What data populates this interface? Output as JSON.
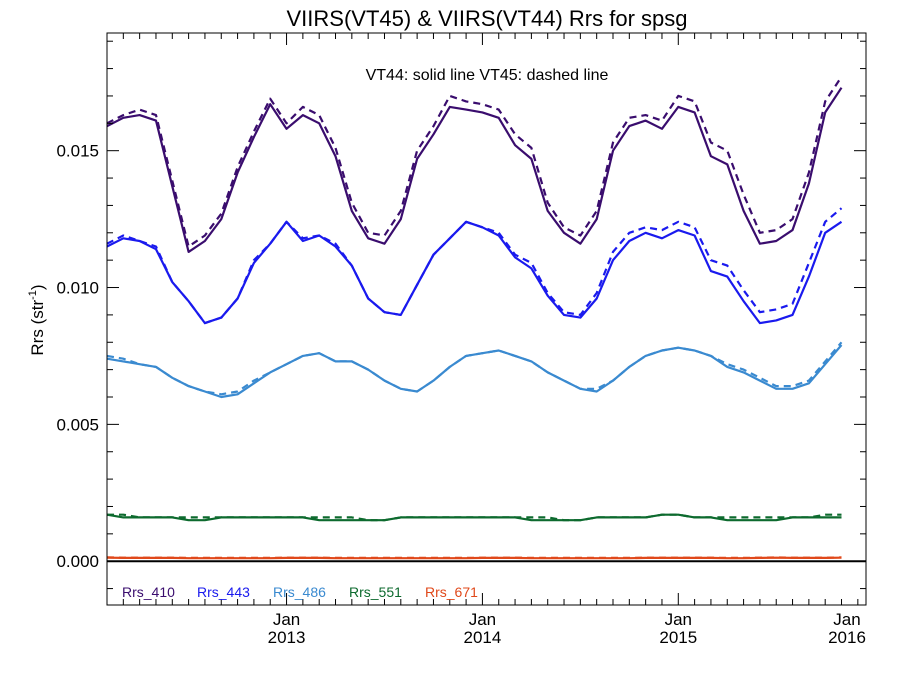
{
  "chart_data": {
    "type": "line",
    "title": "VIIRS(VT45) & VIIRS(VT44)  Rrs for spsg",
    "ylabel_main": "Rrs (str",
    "ylabel_sup": "-1",
    "ylabel_close": ")",
    "annotation": "VT44: solid line   VT45: dashed line",
    "ylim": [
      -0.0016,
      0.0193
    ],
    "xlim": [
      0,
      45
    ],
    "y_ticks": [
      {
        "value": 0.0,
        "label": "0.000"
      },
      {
        "value": 0.005,
        "label": "0.005"
      },
      {
        "value": 0.01,
        "label": "0.010"
      },
      {
        "value": 0.015,
        "label": "0.015"
      }
    ],
    "x_ticks": [
      {
        "x": 11,
        "month": "Jan",
        "year": "2013"
      },
      {
        "x": 23,
        "month": "Jan",
        "year": "2014"
      },
      {
        "x": 35,
        "month": "Jan",
        "year": "2015"
      },
      {
        "x": 47,
        "month": "Jan",
        "year": "2016"
      }
    ],
    "x_note": "x = months since the first data point; sample 0 is the first month on the plot",
    "x": [
      0,
      1,
      2,
      3,
      4,
      5,
      6,
      7,
      8,
      9,
      10,
      11,
      12,
      13,
      14,
      15,
      16,
      17,
      18,
      19,
      20,
      21,
      22,
      23,
      24,
      25,
      26,
      27,
      28,
      29,
      30,
      31,
      32,
      33,
      34,
      35,
      36,
      37,
      38,
      39,
      40,
      41,
      42,
      43,
      44,
      45
    ],
    "zero_line": true,
    "legend": [
      {
        "name": "Rrs_410",
        "color": "#3a0d6e"
      },
      {
        "name": "Rrs_443",
        "color": "#1a1aee"
      },
      {
        "name": "Rrs_486",
        "color": "#3a8ad0"
      },
      {
        "name": "Rrs_551",
        "color": "#0d6a2e"
      },
      {
        "name": "Rrs_671",
        "color": "#e0481a"
      }
    ],
    "series": [
      {
        "name": "Rrs_410 VT44",
        "color": "#3a0d6e",
        "dash": false,
        "values": [
          0.0159,
          0.0162,
          0.0163,
          0.0161,
          0.0137,
          0.0113,
          0.0117,
          0.0125,
          0.0142,
          0.0155,
          0.0167,
          0.0158,
          0.0163,
          0.016,
          0.0148,
          0.0128,
          0.0118,
          0.0116,
          0.0125,
          0.0147,
          0.0156,
          0.0166,
          0.0165,
          0.0164,
          0.0162,
          0.0152,
          0.0147,
          0.0128,
          0.012,
          0.0116,
          0.0125,
          0.015,
          0.0159,
          0.0161,
          0.0158,
          0.0166,
          0.0164,
          0.0148,
          0.0145,
          0.0128,
          0.0116,
          0.0117,
          0.0121,
          0.0138,
          0.0164,
          0.0173
        ]
      },
      {
        "name": "Rrs_410 VT45",
        "color": "#3a0d6e",
        "dash": true,
        "values": [
          0.016,
          0.0163,
          0.0165,
          0.0163,
          0.0139,
          0.0115,
          0.0119,
          0.0127,
          0.0144,
          0.0157,
          0.0169,
          0.016,
          0.0166,
          0.0163,
          0.0151,
          0.0131,
          0.012,
          0.0119,
          0.0128,
          0.015,
          0.0159,
          0.017,
          0.0168,
          0.0167,
          0.0165,
          0.0156,
          0.0151,
          0.0131,
          0.0122,
          0.0119,
          0.0128,
          0.0153,
          0.0162,
          0.0163,
          0.0161,
          0.017,
          0.0168,
          0.0153,
          0.015,
          0.0134,
          0.012,
          0.0121,
          0.0125,
          0.0142,
          0.0168,
          0.0177
        ]
      },
      {
        "name": "Rrs_443 VT44",
        "color": "#1a1aee",
        "dash": false,
        "values": [
          0.0115,
          0.0118,
          0.0117,
          0.0114,
          0.0102,
          0.0095,
          0.0087,
          0.0089,
          0.0096,
          0.0109,
          0.0116,
          0.0124,
          0.0117,
          0.0119,
          0.0115,
          0.0108,
          0.0096,
          0.0091,
          0.009,
          0.0101,
          0.0112,
          0.0118,
          0.0124,
          0.0122,
          0.0119,
          0.0111,
          0.0107,
          0.0097,
          0.009,
          0.0089,
          0.0096,
          0.011,
          0.0117,
          0.012,
          0.0118,
          0.0121,
          0.0119,
          0.0106,
          0.0104,
          0.0095,
          0.0087,
          0.0088,
          0.009,
          0.0104,
          0.012,
          0.0124
        ]
      },
      {
        "name": "Rrs_443 VT45",
        "color": "#1a1aee",
        "dash": true,
        "values": [
          0.0116,
          0.0119,
          0.0117,
          0.0115,
          0.0102,
          0.0095,
          0.0087,
          0.0089,
          0.0096,
          0.011,
          0.0116,
          0.0124,
          0.0118,
          0.0119,
          0.0116,
          0.0108,
          0.0096,
          0.0091,
          0.009,
          0.0101,
          0.0112,
          0.0118,
          0.0124,
          0.0122,
          0.012,
          0.0112,
          0.0109,
          0.0098,
          0.0091,
          0.009,
          0.0098,
          0.0113,
          0.012,
          0.0122,
          0.0121,
          0.0124,
          0.0122,
          0.011,
          0.0108,
          0.0099,
          0.0091,
          0.0092,
          0.0094,
          0.0109,
          0.0124,
          0.0129
        ]
      },
      {
        "name": "Rrs_486 VT44",
        "color": "#3a8ad0",
        "dash": false,
        "values": [
          0.0074,
          0.0073,
          0.0072,
          0.0071,
          0.0067,
          0.0064,
          0.0062,
          0.006,
          0.0061,
          0.0065,
          0.0069,
          0.0072,
          0.0075,
          0.0076,
          0.0073,
          0.0073,
          0.007,
          0.0066,
          0.0063,
          0.0062,
          0.0066,
          0.0071,
          0.0075,
          0.0076,
          0.0077,
          0.0075,
          0.0073,
          0.0069,
          0.0066,
          0.0063,
          0.0062,
          0.0066,
          0.0071,
          0.0075,
          0.0077,
          0.0078,
          0.0077,
          0.0075,
          0.0071,
          0.0069,
          0.0066,
          0.0063,
          0.0063,
          0.0065,
          0.0072,
          0.0079
        ]
      },
      {
        "name": "Rrs_486 VT45",
        "color": "#3a8ad0",
        "dash": true,
        "values": [
          0.0075,
          0.0074,
          0.0072,
          0.0071,
          0.0067,
          0.0064,
          0.0062,
          0.0061,
          0.0062,
          0.0066,
          0.0069,
          0.0072,
          0.0075,
          0.0076,
          0.0073,
          0.0073,
          0.007,
          0.0066,
          0.0063,
          0.0062,
          0.0066,
          0.0071,
          0.0075,
          0.0076,
          0.0077,
          0.0075,
          0.0073,
          0.0069,
          0.0066,
          0.0063,
          0.0063,
          0.0066,
          0.0071,
          0.0075,
          0.0077,
          0.0078,
          0.0077,
          0.0075,
          0.0072,
          0.007,
          0.0067,
          0.0064,
          0.0064,
          0.0066,
          0.0073,
          0.008
        ]
      },
      {
        "name": "Rrs_551 VT44",
        "color": "#0d6a2e",
        "dash": false,
        "values": [
          0.0017,
          0.0016,
          0.0016,
          0.0016,
          0.0016,
          0.0015,
          0.0015,
          0.0016,
          0.0016,
          0.0016,
          0.0016,
          0.0016,
          0.0016,
          0.0015,
          0.0015,
          0.0015,
          0.0015,
          0.0015,
          0.0016,
          0.0016,
          0.0016,
          0.0016,
          0.0016,
          0.0016,
          0.0016,
          0.0016,
          0.0015,
          0.0015,
          0.0015,
          0.0015,
          0.0016,
          0.0016,
          0.0016,
          0.0016,
          0.0017,
          0.0017,
          0.0016,
          0.0016,
          0.0015,
          0.0015,
          0.0015,
          0.0015,
          0.0016,
          0.0016,
          0.0016,
          0.0016
        ]
      },
      {
        "name": "Rrs_551 VT45",
        "color": "#0d6a2e",
        "dash": true,
        "values": [
          0.0017,
          0.0017,
          0.0016,
          0.0016,
          0.0016,
          0.0016,
          0.0016,
          0.0016,
          0.0016,
          0.0016,
          0.0016,
          0.0016,
          0.0016,
          0.0016,
          0.0016,
          0.0016,
          0.0015,
          0.0015,
          0.0016,
          0.0016,
          0.0016,
          0.0016,
          0.0016,
          0.0016,
          0.0016,
          0.0016,
          0.0016,
          0.0016,
          0.0015,
          0.0015,
          0.0016,
          0.0016,
          0.0016,
          0.0016,
          0.0017,
          0.0017,
          0.0016,
          0.0016,
          0.0016,
          0.0016,
          0.0016,
          0.0016,
          0.0016,
          0.0016,
          0.0017,
          0.0017
        ]
      },
      {
        "name": "Rrs_671 VT44",
        "color": "#e0481a",
        "dash": false,
        "values": [
          0.00013,
          0.00012,
          0.00012,
          0.00012,
          0.00012,
          0.00011,
          0.00011,
          0.00011,
          0.00011,
          0.00011,
          0.00011,
          0.00012,
          0.00012,
          0.00012,
          0.00011,
          0.00011,
          0.00011,
          0.00011,
          0.00011,
          0.00011,
          0.00011,
          0.00011,
          0.00011,
          0.00012,
          0.00012,
          0.00012,
          0.00011,
          0.00011,
          0.00011,
          0.00011,
          0.00011,
          0.00011,
          0.00011,
          0.00012,
          0.00012,
          0.00012,
          0.00012,
          0.00012,
          0.00011,
          0.00011,
          0.00012,
          0.00013,
          0.00012,
          0.00012,
          0.00012,
          0.00013
        ]
      },
      {
        "name": "Rrs_671 VT45",
        "color": "#e0481a",
        "dash": true,
        "values": [
          0.00014,
          0.00013,
          0.00013,
          0.00013,
          0.00013,
          0.00012,
          0.00012,
          0.00012,
          0.00012,
          0.00012,
          0.00012,
          0.00013,
          0.00013,
          0.00013,
          0.00012,
          0.00012,
          0.00012,
          0.00012,
          0.00012,
          0.00012,
          0.00012,
          0.00012,
          0.00012,
          0.00013,
          0.00013,
          0.00013,
          0.00012,
          0.00012,
          0.00012,
          0.00012,
          0.00012,
          0.00012,
          0.00012,
          0.00013,
          0.00013,
          0.00013,
          0.00013,
          0.00013,
          0.00012,
          0.00012,
          0.00013,
          0.00014,
          0.00013,
          0.00013,
          0.00013,
          0.00014
        ]
      }
    ]
  }
}
